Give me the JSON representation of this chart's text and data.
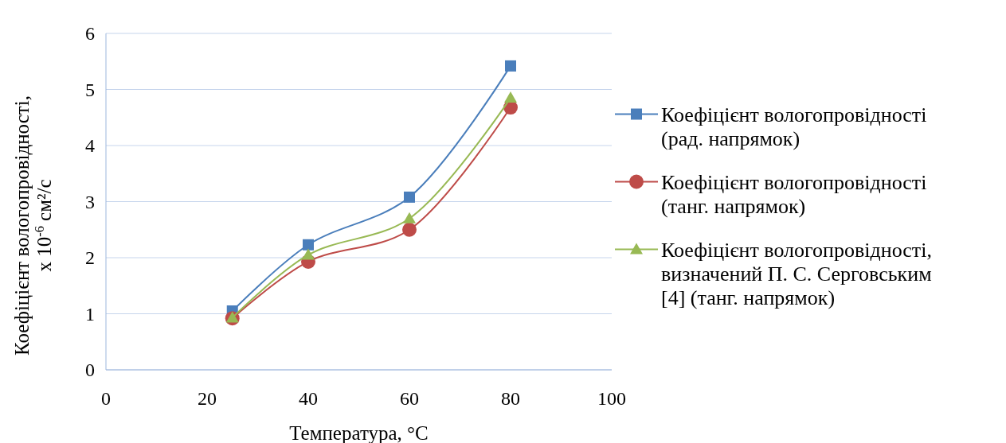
{
  "chart_data": {
    "type": "line",
    "xlabel": "Температура, °С",
    "ylabel": "Коефіцієнт вологопровідності, x 10$^{-6}$ см²/с",
    "x": [
      25,
      40,
      60,
      80
    ],
    "xlim": [
      0,
      100
    ],
    "xticks": [
      0,
      20,
      40,
      60,
      80,
      100
    ],
    "ylim": [
      0,
      6
    ],
    "yticks": [
      0,
      1,
      2,
      3,
      4,
      5,
      6
    ],
    "grid": "y",
    "legend": "right",
    "line_style": "solid",
    "series": [
      {
        "name": "Коефіцієнт вологопровідності (рад. напрямок)",
        "color": "#4a7ebb",
        "marker": "square",
        "values": [
          1.05,
          2.23,
          3.08,
          5.42
        ]
      },
      {
        "name": "Коефіцієнт вологопровідності (танг. напрямок)",
        "color": "#be4b48",
        "marker": "circle",
        "values": [
          0.92,
          1.93,
          2.5,
          4.68
        ]
      },
      {
        "name": "Коефіцієнт вологопровідності, визначений П. С. Серговським [4] (танг. напрямок)",
        "color": "#98b954",
        "marker": "triangle",
        "values": [
          0.93,
          2.05,
          2.7,
          4.85
        ]
      }
    ]
  }
}
